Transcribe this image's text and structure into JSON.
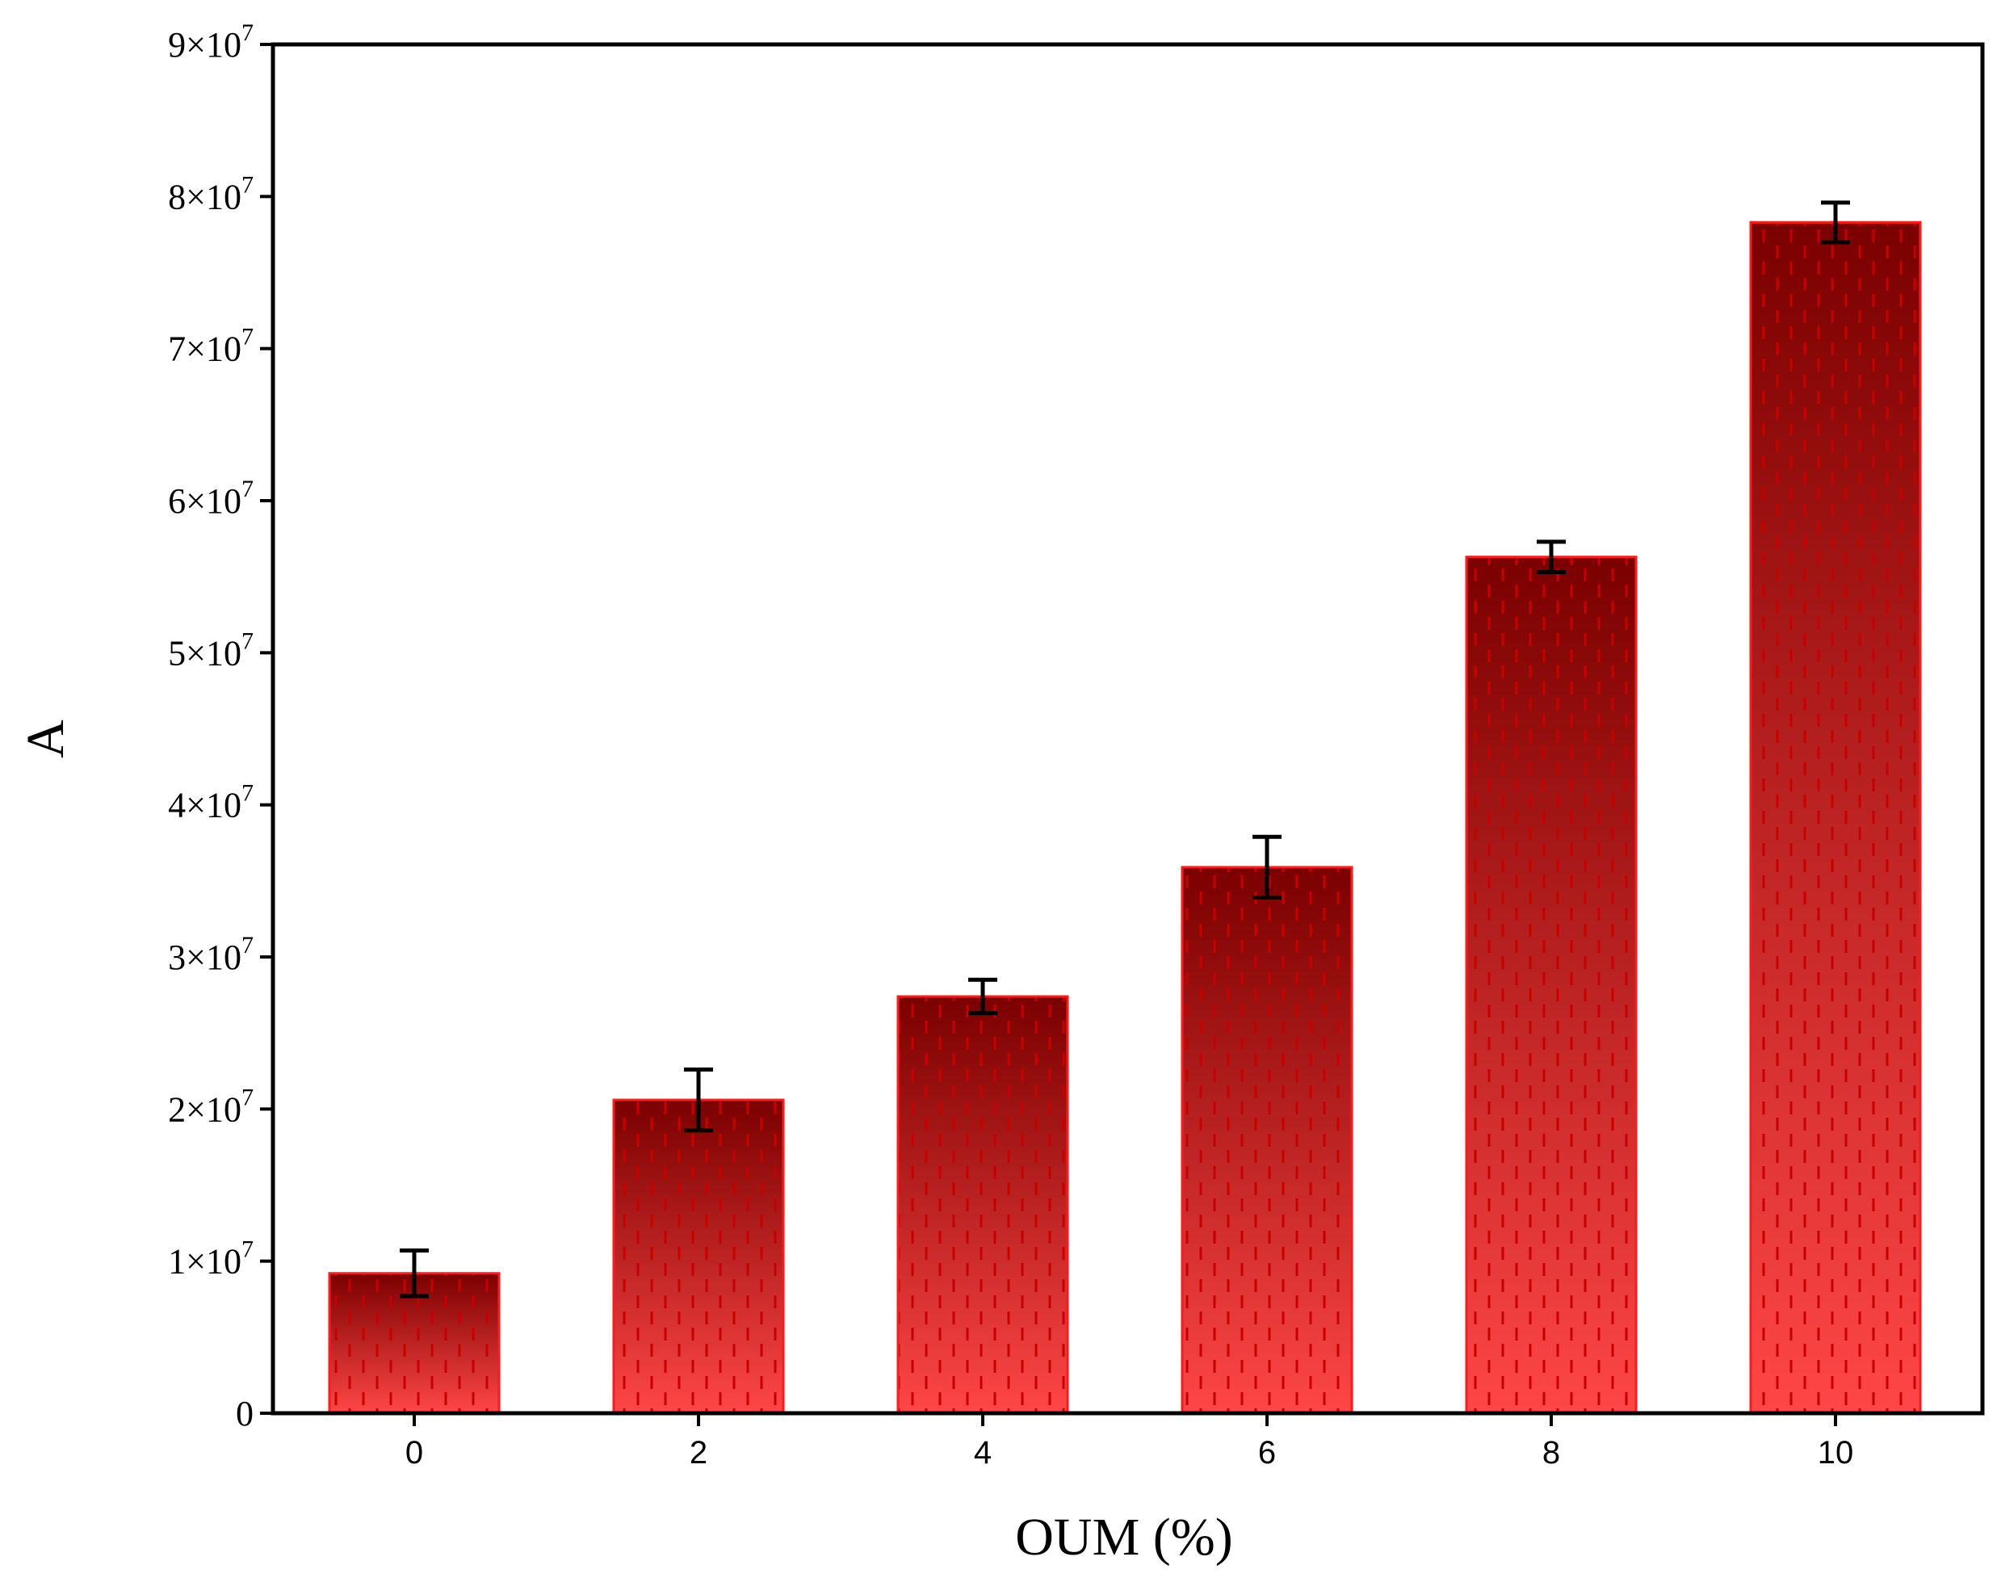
{
  "chart_data": {
    "type": "bar",
    "title": "",
    "xlabel": "OUM (%)",
    "ylabel": "A",
    "categories": [
      "0",
      "2",
      "4",
      "6",
      "8",
      "10"
    ],
    "values": [
      9200000,
      20600000,
      27400000,
      35900000,
      56300000,
      78300000
    ],
    "errors": [
      1500000,
      2000000,
      1100000,
      2000000,
      1000000,
      1300000
    ],
    "ylim": [
      0,
      90000000
    ],
    "yticks": [
      {
        "value": 0,
        "base": "0",
        "exp": ""
      },
      {
        "value": 10000000,
        "base": "1×10",
        "exp": "7"
      },
      {
        "value": 20000000,
        "base": "2×10",
        "exp": "7"
      },
      {
        "value": 30000000,
        "base": "3×10",
        "exp": "7"
      },
      {
        "value": 40000000,
        "base": "4×10",
        "exp": "7"
      },
      {
        "value": 50000000,
        "base": "5×10",
        "exp": "7"
      },
      {
        "value": 60000000,
        "base": "6×10",
        "exp": "7"
      },
      {
        "value": 70000000,
        "base": "7×10",
        "exp": "7"
      },
      {
        "value": 80000000,
        "base": "8×10",
        "exp": "7"
      },
      {
        "value": 90000000,
        "base": "9×10",
        "exp": "7"
      }
    ],
    "grid": false,
    "legend": "none",
    "colors": {
      "bar_top": "#7a0000",
      "bar_bottom": "#ff4646",
      "bar_edge": "#ff1a1a",
      "hatch": "#c80000",
      "error_bar": "#000000",
      "axis": "#000000"
    }
  }
}
